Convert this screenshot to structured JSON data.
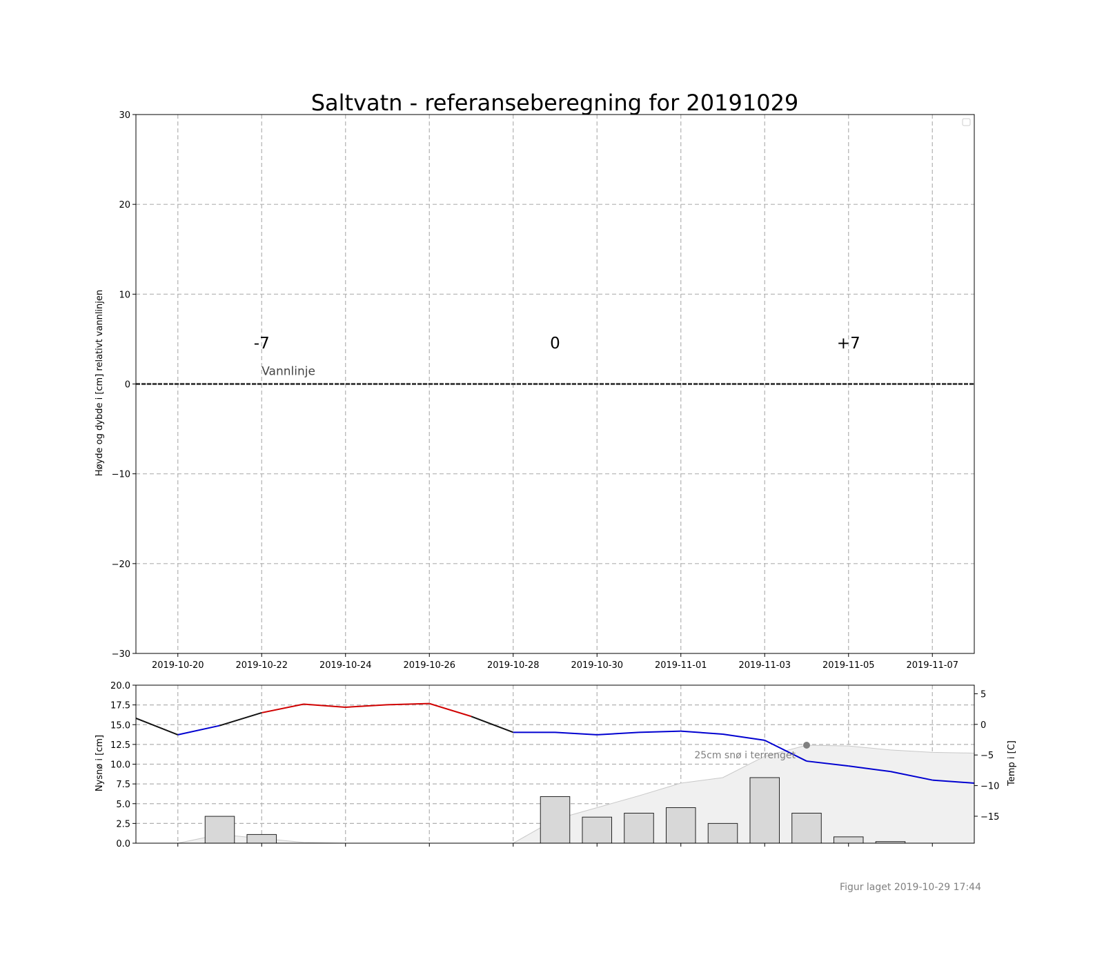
{
  "chart_data": [
    {
      "type": "line",
      "title": "Saltvatn - referanseberegning for 20191029",
      "ylabel": "Høyde og dybde i [cm] relativt vannlinjen",
      "xlim": [
        "2019-10-19",
        "2019-11-08"
      ],
      "ylim": [
        -30,
        30
      ],
      "yticks": [
        -30,
        -20,
        -10,
        0,
        10,
        20,
        30
      ],
      "ytick_labels": [
        "−30",
        "−20",
        "−10",
        "0",
        "10",
        "20",
        "30"
      ],
      "xticks": [
        "2019-10-20",
        "2019-10-22",
        "2019-10-24",
        "2019-10-26",
        "2019-10-28",
        "2019-10-30",
        "2019-11-01",
        "2019-11-03",
        "2019-11-05",
        "2019-11-07"
      ],
      "grid": true,
      "legend": "top-right (empty)",
      "series": [
        {
          "values": [
            {
              "x": "2019-10-19",
              "y": 0
            },
            {
              "x": "2019-11-08",
              "y": 0
            }
          ],
          "color": "#444444",
          "style": "dashed"
        }
      ],
      "annotations": [
        {
          "text": "-7",
          "x": "2019-10-22",
          "y": 4.5
        },
        {
          "text": "0",
          "x": "2019-10-29",
          "y": 4.5
        },
        {
          "text": "+7",
          "x": "2019-11-05",
          "y": 4.5
        },
        {
          "text": "Vannlinje",
          "x": "2019-10-22",
          "y": 1
        }
      ]
    },
    {
      "type": "bar",
      "ylabel": "Nysnø i [cm]",
      "y2label": "Temp i [C]",
      "ylim": [
        0,
        20
      ],
      "yticks": [
        0,
        2.5,
        5,
        7.5,
        10,
        12.5,
        15,
        17.5,
        20
      ],
      "ytick_labels": [
        "0.0",
        "2.5",
        "5.0",
        "7.5",
        "10.0",
        "12.5",
        "15.0",
        "17.5",
        "20.0"
      ],
      "y2lim": [
        -19.4,
        6.4
      ],
      "y2ticks": [
        -15,
        -10,
        -5,
        0,
        5
      ],
      "y2tick_labels": [
        "−15",
        "−10",
        "−5",
        "0",
        "5"
      ],
      "grid": true,
      "new_snow": [
        {
          "x": "2019-10-20",
          "value": 0
        },
        {
          "x": "2019-10-21",
          "value": 3.4
        },
        {
          "x": "2019-10-22",
          "value": 1.1
        },
        {
          "x": "2019-10-23",
          "value": 0
        },
        {
          "x": "2019-10-24",
          "value": 0
        },
        {
          "x": "2019-10-25",
          "value": 0
        },
        {
          "x": "2019-10-26",
          "value": 0
        },
        {
          "x": "2019-10-27",
          "value": 0
        },
        {
          "x": "2019-10-28",
          "value": 0
        },
        {
          "x": "2019-10-29",
          "value": 5.9
        },
        {
          "x": "2019-10-30",
          "value": 3.3
        },
        {
          "x": "2019-10-31",
          "value": 3.8
        },
        {
          "x": "2019-11-01",
          "value": 4.5
        },
        {
          "x": "2019-11-02",
          "value": 2.5
        },
        {
          "x": "2019-11-03",
          "value": 8.3
        },
        {
          "x": "2019-11-04",
          "value": 3.8
        },
        {
          "x": "2019-11-05",
          "value": 0.8
        },
        {
          "x": "2019-11-06",
          "value": 0.2
        },
        {
          "x": "2019-11-07",
          "value": 0
        }
      ],
      "snow_depth": [
        {
          "x": "2019-10-19",
          "value": 0
        },
        {
          "x": "2019-10-20",
          "value": 0
        },
        {
          "x": "2019-10-21",
          "value": 1.1
        },
        {
          "x": "2019-10-22",
          "value": 0.6
        },
        {
          "x": "2019-10-23",
          "value": 0.1
        },
        {
          "x": "2019-10-24",
          "value": 0
        },
        {
          "x": "2019-10-28",
          "value": 0
        },
        {
          "x": "2019-10-29",
          "value": 3
        },
        {
          "x": "2019-10-30",
          "value": 4.5
        },
        {
          "x": "2019-10-31",
          "value": 6
        },
        {
          "x": "2019-11-01",
          "value": 7.6
        },
        {
          "x": "2019-11-02",
          "value": 8.3
        },
        {
          "x": "2019-11-03",
          "value": 11
        },
        {
          "x": "2019-11-04",
          "value": 12.4
        },
        {
          "x": "2019-11-05",
          "value": 12.3
        },
        {
          "x": "2019-11-06",
          "value": 11.8
        },
        {
          "x": "2019-11-07",
          "value": 11.5
        },
        {
          "x": "2019-11-08",
          "value": 11.4
        }
      ],
      "temperature": [
        {
          "x": "2019-10-19",
          "value": 1
        },
        {
          "x": "2019-10-20",
          "value": -1.7
        },
        {
          "x": "2019-10-21",
          "value": -0.2
        },
        {
          "x": "2019-10-22",
          "value": 1.9
        },
        {
          "x": "2019-10-23",
          "value": 3.3
        },
        {
          "x": "2019-10-24",
          "value": 2.8
        },
        {
          "x": "2019-10-25",
          "value": 3.2
        },
        {
          "x": "2019-10-26",
          "value": 3.4
        },
        {
          "x": "2019-10-27",
          "value": 1.3
        },
        {
          "x": "2019-10-28",
          "value": -1.3
        },
        {
          "x": "2019-10-29",
          "value": -1.3
        },
        {
          "x": "2019-10-30",
          "value": -1.7
        },
        {
          "x": "2019-10-31",
          "value": -1.3
        },
        {
          "x": "2019-11-01",
          "value": -1.1
        },
        {
          "x": "2019-11-02",
          "value": -1.6
        },
        {
          "x": "2019-11-03",
          "value": -2.6
        },
        {
          "x": "2019-11-04",
          "value": -6
        },
        {
          "x": "2019-11-05",
          "value": -6.8
        },
        {
          "x": "2019-11-06",
          "value": -7.7
        },
        {
          "x": "2019-11-07",
          "value": -9.1
        },
        {
          "x": "2019-11-08",
          "value": -9.6
        }
      ],
      "temperature_colors": {
        "above_zero": "#d00000",
        "below_zero": "#0000d0",
        "transition": "#111111"
      },
      "marker": {
        "x": "2019-11-04",
        "value": 12.4,
        "label": "25cm snø i terrenget"
      }
    }
  ],
  "footer": {
    "text": "Figur laget 2019-10-29 17:44"
  }
}
